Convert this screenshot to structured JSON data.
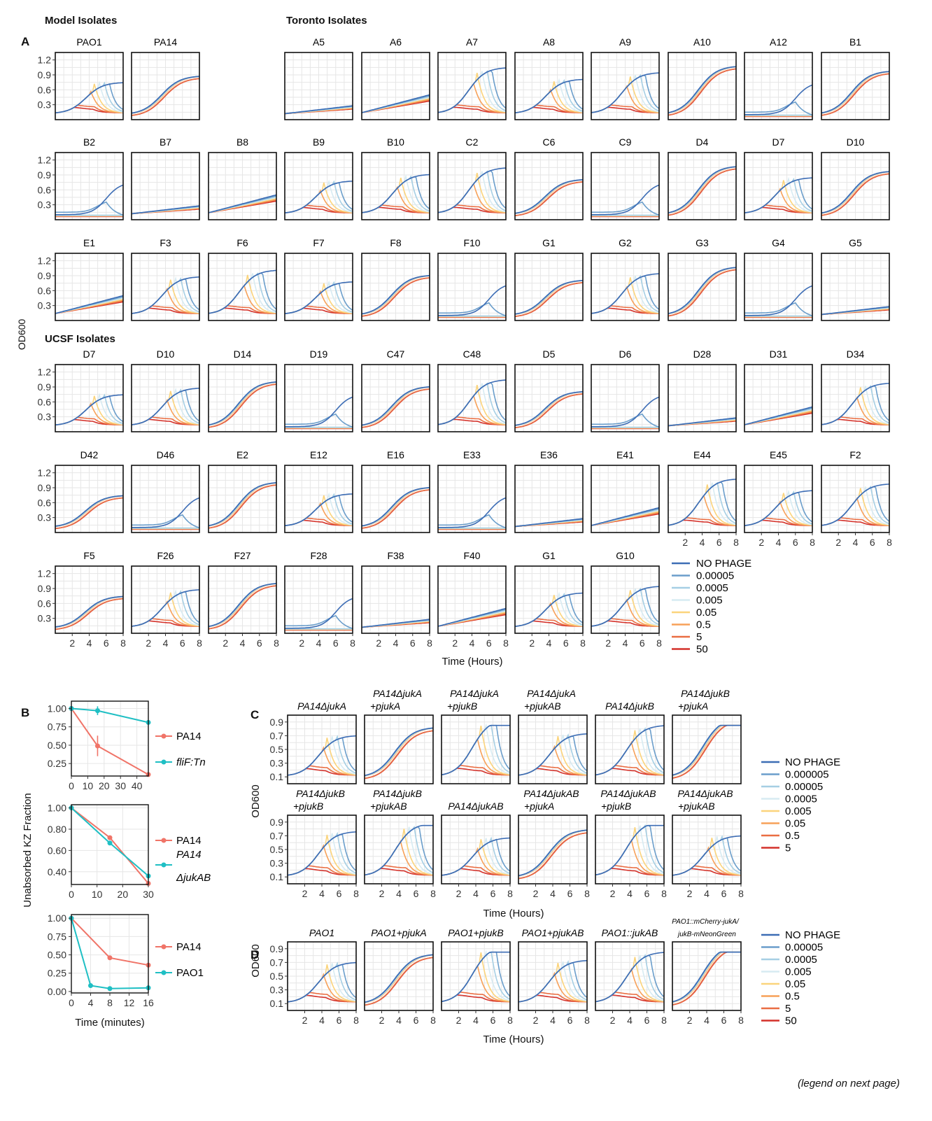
{
  "figure": {
    "footer": "(legend on next page)",
    "panel_labels": [
      "A",
      "B",
      "C",
      "D"
    ]
  },
  "panel_a": {
    "group_headings": [
      "Model Isolates",
      "Toronto Isolates",
      "UCSF Isolates"
    ],
    "ylabel": "OD600",
    "xlabel": "Time (Hours)",
    "y_ticks": [
      "0.3",
      "0.6",
      "0.9",
      "1.2"
    ],
    "x_ticks": [
      "2",
      "4",
      "6",
      "8"
    ],
    "legend": [
      "NO PHAGE",
      "0.00005",
      "0.0005",
      "0.005",
      "0.05",
      "0.5",
      "5",
      "50"
    ],
    "rows": [
      [
        "PAO1",
        "PA14",
        "",
        "A5",
        "A6",
        "A7",
        "A8",
        "A9",
        "A10",
        "A12",
        "B1"
      ],
      [
        "B2",
        "B7",
        "B8",
        "B9",
        "B10",
        "C2",
        "C6",
        "C9",
        "D4",
        "D7",
        "D10"
      ],
      [
        "E1",
        "F3",
        "F6",
        "F7",
        "F8",
        "F10",
        "G1",
        "G2",
        "G3",
        "G4",
        "G5"
      ],
      [
        "D7",
        "D10",
        "D14",
        "D19",
        "C47",
        "C48",
        "D5",
        "D6",
        "D28",
        "D31",
        "D34"
      ],
      [
        "D42",
        "D46",
        "E2",
        "E12",
        "E16",
        "E33",
        "E36",
        "E41",
        "E44",
        "E45",
        "F2"
      ],
      [
        "F5",
        "F26",
        "F27",
        "F28",
        "F38",
        "F40",
        "G1",
        "G10"
      ]
    ]
  },
  "panel_b": {
    "ylabel": "Unabsorbed KZ Fraction",
    "xlabel": "Time (minutes)",
    "plots": [
      {
        "x_ticks": [
          "0",
          "10",
          "20",
          "30",
          "40"
        ],
        "y_ticks": [
          "1.00",
          "0.75",
          "0.50",
          "0.25"
        ],
        "legend": [
          "PA14",
          "fliF:Tn"
        ]
      },
      {
        "x_ticks": [
          "0",
          "10",
          "20",
          "30"
        ],
        "y_ticks": [
          "1.00",
          "0.80",
          "0.60",
          "0.40"
        ],
        "legend": [
          "PA14",
          "PA14",
          "ΔjukAB"
        ]
      },
      {
        "x_ticks": [
          "0",
          "4",
          "8",
          "12",
          "16"
        ],
        "y_ticks": [
          "1.00",
          "0.75",
          "0.50",
          "0.25",
          "0.00"
        ],
        "legend": [
          "PA14",
          "PAO1"
        ]
      }
    ]
  },
  "panel_c": {
    "ylabel": "OD600",
    "xlabel": "Time (Hours)",
    "y_ticks": [
      "0.1",
      "0.3",
      "0.5",
      "0.7",
      "0.9"
    ],
    "x_ticks": [
      "2",
      "4",
      "6",
      "8"
    ],
    "legend": [
      "NO PHAGE",
      "0.000005",
      "0.00005",
      "0.0005",
      "0.005",
      "0.05",
      "0.5",
      "5"
    ],
    "titles": [
      [
        "PA14ΔjukA",
        ""
      ],
      [
        "PA14ΔjukA",
        "+pjukA"
      ],
      [
        "PA14ΔjukA",
        "+pjukB"
      ],
      [
        "PA14ΔjukA",
        "+pjukAB"
      ],
      [
        "PA14ΔjukB",
        ""
      ],
      [
        "PA14ΔjukB",
        "+pjukA"
      ],
      [
        "PA14ΔjukB",
        "+pjukB"
      ],
      [
        "PA14ΔjukB",
        "+pjukAB"
      ],
      [
        "PA14ΔjukAB",
        ""
      ],
      [
        "PA14ΔjukAB",
        "+pjukA"
      ],
      [
        "PA14ΔjukAB",
        "+pjukB"
      ],
      [
        "PA14ΔjukAB",
        "+pjukAB"
      ]
    ]
  },
  "panel_d": {
    "ylabel": "OD600",
    "xlabel": "Time (Hours)",
    "y_ticks": [
      "0.1",
      "0.3",
      "0.5",
      "0.7",
      "0.9"
    ],
    "x_ticks": [
      "2",
      "4",
      "6",
      "8"
    ],
    "legend": [
      "NO PHAGE",
      "0.00005",
      "0.0005",
      "0.005",
      "0.05",
      "0.5",
      "5",
      "50"
    ],
    "titles": [
      [
        "PAO1",
        ""
      ],
      [
        "PAO1+pjukA",
        ""
      ],
      [
        "PAO1+pjukB",
        ""
      ],
      [
        "PAO1+pjukAB",
        ""
      ],
      [
        "PAO1::jukAB",
        ""
      ],
      [
        "PAO1::mCherry-jukA/",
        "jukB-mNeonGreen"
      ]
    ]
  },
  "chart_data": [
    {
      "type": "line",
      "panel": "B1",
      "xlabel": "",
      "ylabel": "Unabsorbed KZ Fraction",
      "xlim": [
        0,
        47
      ],
      "ylim": [
        0.08,
        1.1
      ],
      "series": [
        {
          "name": "PA14",
          "color": "#f07468",
          "x": [
            0,
            16,
            47
          ],
          "y": [
            1.0,
            0.49,
            0.1
          ]
        },
        {
          "name": "fliF:Tn",
          "color": "#1fbfc4",
          "x": [
            0,
            16,
            47
          ],
          "y": [
            1.0,
            0.97,
            0.81
          ]
        }
      ]
    },
    {
      "type": "line",
      "panel": "B2",
      "xlim": [
        0,
        30
      ],
      "ylim": [
        0.28,
        1.03
      ],
      "series": [
        {
          "name": "PA14",
          "color": "#f07468",
          "x": [
            0,
            15,
            30
          ],
          "y": [
            1.0,
            0.72,
            0.29
          ]
        },
        {
          "name": "PA14 ΔjukAB",
          "color": "#1fbfc4",
          "x": [
            0,
            15,
            30
          ],
          "y": [
            1.0,
            0.67,
            0.36
          ]
        }
      ]
    },
    {
      "type": "line",
      "panel": "B3",
      "xlabel": "Time (minutes)",
      "xlim": [
        0,
        16
      ],
      "ylim": [
        -0.02,
        1.05
      ],
      "series": [
        {
          "name": "PA14",
          "color": "#f07468",
          "x": [
            0,
            8,
            16
          ],
          "y": [
            1.0,
            0.46,
            0.36
          ]
        },
        {
          "name": "PAO1",
          "color": "#1fbfc4",
          "x": [
            0,
            4,
            8,
            16
          ],
          "y": [
            1.0,
            0.08,
            0.04,
            0.05
          ]
        }
      ]
    }
  ]
}
